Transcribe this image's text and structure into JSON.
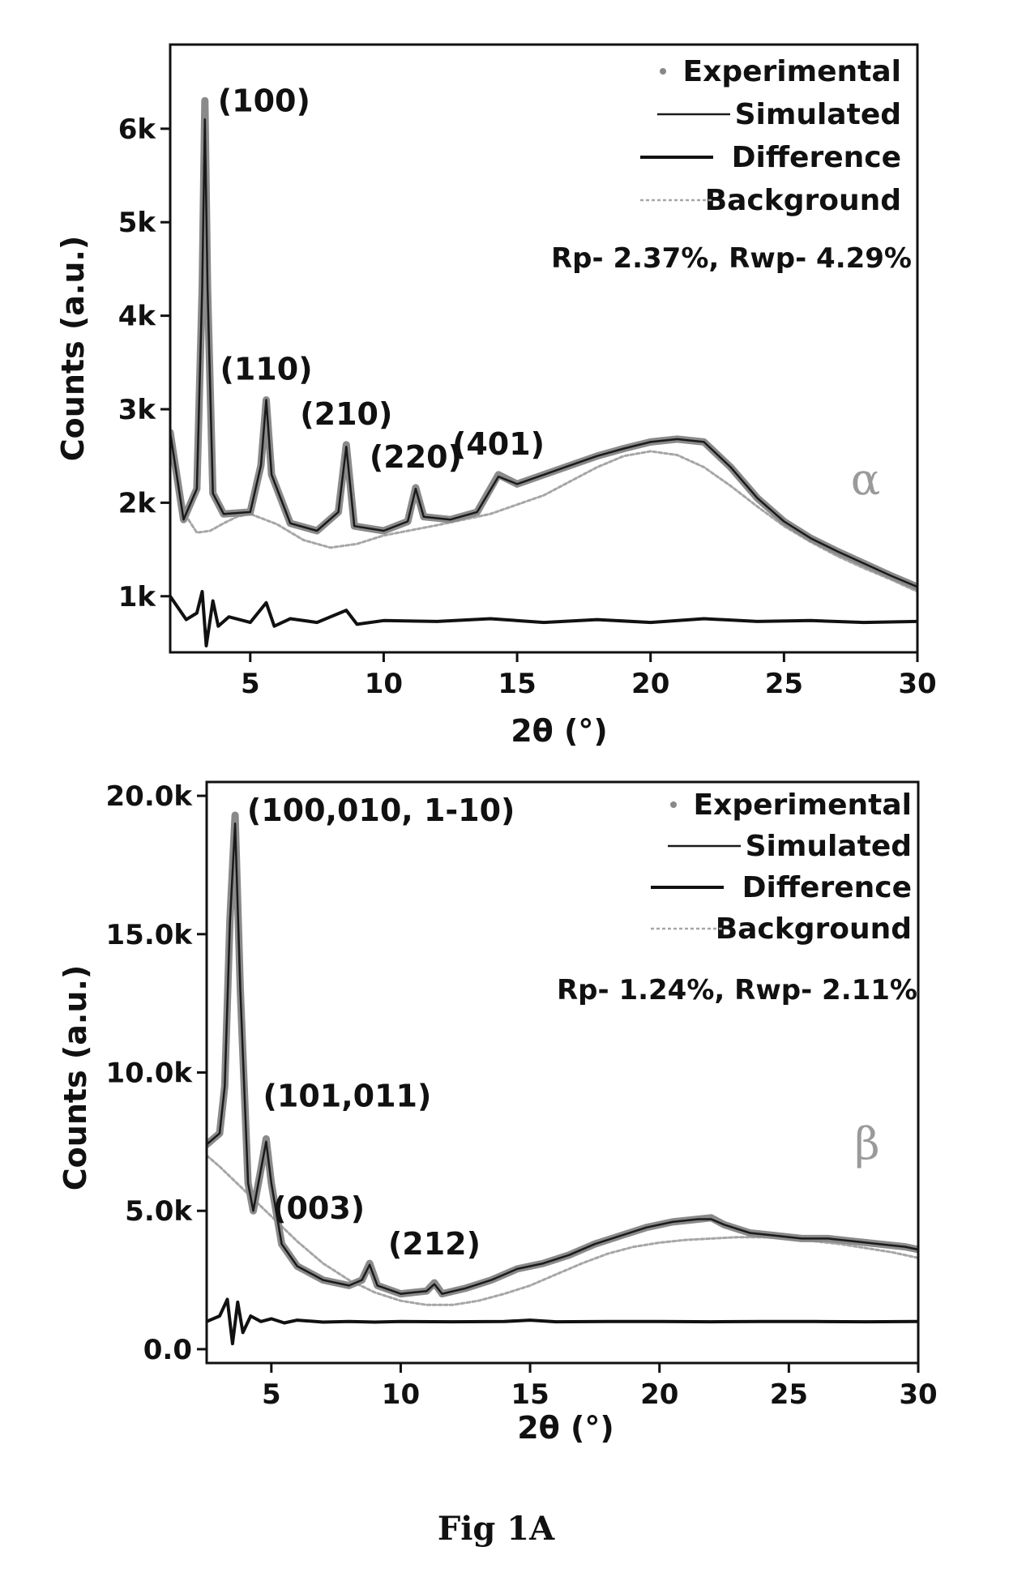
{
  "caption": "Fig 1A",
  "chart_data": [
    {
      "type": "line",
      "phase_label": "α",
      "xlabel": "2θ (°)",
      "ylabel": "Counts (a.u.)",
      "xlim": [
        2,
        30
      ],
      "ylim": [
        400,
        6900
      ],
      "x_ticks": [
        5,
        10,
        15,
        20,
        25,
        30
      ],
      "x_tick_labels": [
        "5",
        "10",
        "15",
        "20",
        "25",
        "30"
      ],
      "y_ticks": [
        1000,
        2000,
        3000,
        4000,
        5000,
        6000
      ],
      "y_tick_labels": [
        "1k",
        "2k",
        "3k",
        "4k",
        "5k",
        "6k"
      ],
      "legend": {
        "position": "top-right",
        "entries": [
          "Experimental",
          "Simulated",
          "Difference",
          "Background"
        ]
      },
      "stats": "Rp- 2.37%, Rwp- 4.29%",
      "peaks": [
        {
          "label": "(100)",
          "x": 3.3,
          "y": 6100
        },
        {
          "label": "(110)",
          "x": 5.6,
          "y": 3100
        },
        {
          "label": "(210)",
          "x": 8.6,
          "y": 2620
        },
        {
          "label": "(220)",
          "x": 11.2,
          "y": 2160
        },
        {
          "label": "(401)",
          "x": 14.3,
          "y": 2300
        }
      ],
      "series": [
        {
          "name": "Experimental",
          "x": [
            2.0,
            2.5,
            3.0,
            3.2,
            3.3,
            3.4,
            3.6,
            4.0,
            5.0,
            5.4,
            5.6,
            5.8,
            6.5,
            7.5,
            8.3,
            8.6,
            8.9,
            10.0,
            10.9,
            11.2,
            11.5,
            12.5,
            13.5,
            14.3,
            15.0,
            16.0,
            17.0,
            18.0,
            19.0,
            20.0,
            21.0,
            22.0,
            23.0,
            24.0,
            25.0,
            26.0,
            27.0,
            28.0,
            29.0,
            30.0
          ],
          "y": [
            2750,
            1820,
            2150,
            4300,
            6300,
            4300,
            2100,
            1880,
            1900,
            2400,
            3100,
            2300,
            1780,
            1700,
            1900,
            2620,
            1750,
            1700,
            1800,
            2160,
            1850,
            1820,
            1900,
            2300,
            2200,
            2300,
            2400,
            2500,
            2580,
            2650,
            2680,
            2650,
            2380,
            2050,
            1800,
            1620,
            1480,
            1350,
            1220,
            1100
          ]
        },
        {
          "name": "Simulated",
          "x": [
            2.0,
            2.5,
            3.0,
            3.2,
            3.3,
            3.4,
            3.6,
            4.0,
            5.0,
            5.4,
            5.6,
            5.8,
            6.5,
            7.5,
            8.3,
            8.6,
            8.9,
            10.0,
            10.9,
            11.2,
            11.5,
            12.5,
            13.5,
            14.3,
            15.0,
            16.0,
            17.0,
            18.0,
            19.0,
            20.0,
            21.0,
            22.0,
            23.0,
            24.0,
            25.0,
            26.0,
            27.0,
            28.0,
            29.0,
            30.0
          ],
          "y": [
            2750,
            1820,
            2150,
            4300,
            6100,
            4300,
            2100,
            1880,
            1900,
            2400,
            3100,
            2300,
            1780,
            1700,
            1900,
            2600,
            1750,
            1700,
            1800,
            2150,
            1850,
            1820,
            1900,
            2280,
            2200,
            2300,
            2400,
            2500,
            2580,
            2650,
            2680,
            2650,
            2380,
            2050,
            1800,
            1620,
            1480,
            1350,
            1220,
            1100
          ]
        },
        {
          "name": "Difference",
          "x": [
            2.0,
            2.6,
            3.0,
            3.2,
            3.35,
            3.6,
            3.8,
            4.2,
            5.0,
            5.6,
            5.9,
            6.5,
            7.5,
            8.6,
            9.0,
            10.0,
            12.0,
            14.0,
            16.0,
            18.0,
            20.0,
            22.0,
            24.0,
            26.0,
            28.0,
            30.0
          ],
          "y": [
            1000,
            750,
            820,
            1050,
            470,
            950,
            680,
            780,
            720,
            930,
            680,
            760,
            720,
            850,
            700,
            740,
            730,
            760,
            720,
            750,
            720,
            760,
            730,
            740,
            720,
            730
          ]
        },
        {
          "name": "Background",
          "x": [
            2.0,
            2.5,
            3.0,
            3.5,
            4.0,
            4.5,
            5.0,
            6.0,
            7.0,
            8.0,
            9.0,
            10.0,
            12.0,
            14.0,
            16.0,
            18.0,
            19.0,
            20.0,
            21.0,
            22.0,
            23.0,
            24.0,
            25.0,
            26.0,
            27.0,
            28.0,
            29.0,
            30.0
          ],
          "y": [
            2700,
            1900,
            1680,
            1700,
            1780,
            1850,
            1880,
            1770,
            1600,
            1520,
            1560,
            1650,
            1760,
            1880,
            2080,
            2380,
            2500,
            2550,
            2510,
            2380,
            2180,
            1960,
            1750,
            1580,
            1430,
            1300,
            1180,
            1050
          ]
        }
      ]
    },
    {
      "type": "line",
      "phase_label": "β",
      "xlabel": "2θ (°)",
      "ylabel": "Counts (a.u.)",
      "xlim": [
        2.5,
        30
      ],
      "ylim": [
        -500,
        20500
      ],
      "x_ticks": [
        5,
        10,
        15,
        20,
        25,
        30
      ],
      "x_tick_labels": [
        "5",
        "10",
        "15",
        "20",
        "25",
        "30"
      ],
      "y_ticks": [
        0,
        5000,
        10000,
        15000,
        20000
      ],
      "y_tick_labels": [
        "0.0",
        "5.0k",
        "10.0k",
        "15.0k",
        "20.0k"
      ],
      "legend": {
        "position": "top-right",
        "entries": [
          "Experimental",
          "Simulated",
          "Difference",
          "Background"
        ]
      },
      "stats": "Rp- 1.24%, Rwp- 2.11%",
      "peaks": [
        {
          "label": "(100,010, 1-10)",
          "x": 3.6,
          "y": 19000
        },
        {
          "label": "(101,011)",
          "x": 4.8,
          "y": 7600
        },
        {
          "label": "(003)",
          "x": 8.8,
          "y": 3100
        },
        {
          "label": "(212)",
          "x": 11.3,
          "y": 2400
        }
      ],
      "series": [
        {
          "name": "Experimental",
          "x": [
            2.5,
            3.0,
            3.2,
            3.4,
            3.6,
            3.8,
            4.1,
            4.3,
            4.6,
            4.8,
            5.0,
            5.4,
            6.0,
            7.0,
            8.0,
            8.5,
            8.8,
            9.1,
            10.0,
            11.0,
            11.3,
            11.6,
            12.5,
            13.5,
            14.5,
            15.5,
            16.5,
            17.5,
            18.5,
            19.5,
            20.5,
            21.5,
            22.0,
            22.5,
            23.5,
            24.5,
            25.5,
            26.5,
            27.5,
            28.5,
            29.5,
            30.0
          ],
          "y": [
            7400,
            7800,
            9500,
            15500,
            19300,
            13000,
            6000,
            5000,
            6500,
            7600,
            6000,
            3800,
            3000,
            2500,
            2300,
            2500,
            3100,
            2300,
            2000,
            2100,
            2400,
            2000,
            2200,
            2500,
            2900,
            3100,
            3400,
            3800,
            4100,
            4400,
            4600,
            4700,
            4750,
            4500,
            4200,
            4100,
            4000,
            4000,
            3900,
            3800,
            3700,
            3600
          ]
        },
        {
          "name": "Simulated",
          "x": [
            2.5,
            3.0,
            3.2,
            3.4,
            3.6,
            3.8,
            4.1,
            4.3,
            4.6,
            4.8,
            5.0,
            5.4,
            6.0,
            7.0,
            8.0,
            8.5,
            8.8,
            9.1,
            10.0,
            11.0,
            11.3,
            11.6,
            12.5,
            13.5,
            14.5,
            15.5,
            16.5,
            17.5,
            18.5,
            19.5,
            20.5,
            21.5,
            22.0,
            22.5,
            23.5,
            24.5,
            25.5,
            26.5,
            27.5,
            28.5,
            29.5,
            30.0
          ],
          "y": [
            7400,
            7800,
            9500,
            15400,
            19000,
            13000,
            6000,
            5000,
            6500,
            7500,
            6000,
            3800,
            3000,
            2500,
            2300,
            2500,
            3050,
            2300,
            2000,
            2100,
            2350,
            2000,
            2200,
            2500,
            2900,
            3100,
            3400,
            3800,
            4100,
            4400,
            4600,
            4700,
            4700,
            4500,
            4200,
            4100,
            4000,
            4000,
            3900,
            3800,
            3700,
            3600
          ]
        },
        {
          "name": "Difference",
          "x": [
            2.5,
            3.0,
            3.3,
            3.5,
            3.7,
            3.9,
            4.2,
            4.6,
            5.0,
            5.5,
            6.0,
            7.0,
            8.0,
            9.0,
            10.0,
            12.0,
            14.0,
            15.0,
            16.0,
            18.0,
            20.0,
            22.0,
            24.0,
            26.0,
            28.0,
            30.0
          ],
          "y": [
            1000,
            1200,
            1800,
            200,
            1700,
            600,
            1200,
            1000,
            1100,
            950,
            1050,
            980,
            1000,
            980,
            1000,
            990,
            1000,
            1050,
            990,
            1000,
            1000,
            990,
            1000,
            1000,
            990,
            1000
          ]
        },
        {
          "name": "Background",
          "x": [
            2.5,
            3.0,
            4.0,
            5.0,
            6.0,
            7.0,
            8.0,
            9.0,
            10.0,
            11.0,
            12.0,
            13.0,
            14.0,
            15.0,
            16.0,
            17.0,
            18.0,
            19.0,
            20.0,
            21.0,
            22.0,
            23.0,
            24.0,
            25.0,
            26.0,
            27.0,
            28.0,
            29.0,
            30.0
          ],
          "y": [
            7000,
            6600,
            5700,
            4800,
            3900,
            3100,
            2500,
            2050,
            1750,
            1600,
            1600,
            1750,
            2000,
            2300,
            2700,
            3100,
            3450,
            3700,
            3850,
            3950,
            4000,
            4050,
            4050,
            4000,
            3900,
            3800,
            3650,
            3500,
            3300
          ]
        }
      ]
    }
  ]
}
